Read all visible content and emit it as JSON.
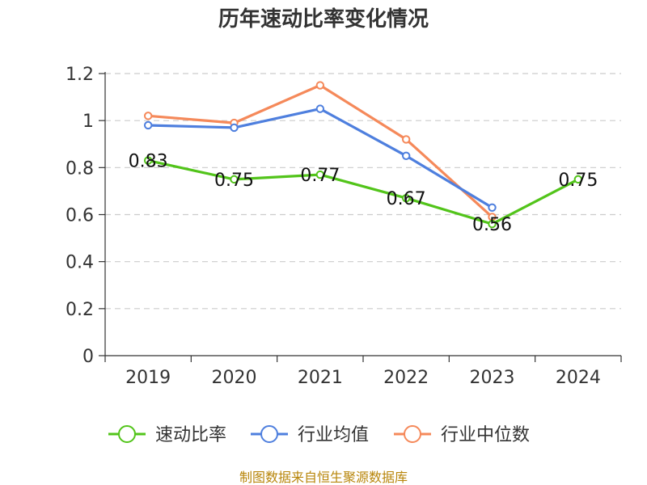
{
  "chart_data": {
    "type": "line",
    "title": "历年速动比率变化情况",
    "xlabel": "",
    "ylabel": "",
    "categories": [
      "2019",
      "2020",
      "2021",
      "2022",
      "2023",
      "2024"
    ],
    "ylim": [
      0,
      1.2
    ],
    "yticks": [
      "0",
      "0.2",
      "0.4",
      "0.6",
      "0.8",
      "1",
      "1.2"
    ],
    "yticks_values": [
      0,
      0.2,
      0.4,
      0.6,
      0.8,
      1.0,
      1.2
    ],
    "grid": true,
    "legend_position": "bottom",
    "series": [
      {
        "name": "速动比率",
        "color": "#52c41a",
        "values": [
          0.83,
          0.75,
          0.77,
          0.67,
          0.56,
          0.75
        ],
        "labels": [
          "0.83",
          "0.75",
          "0.77",
          "0.67",
          "0.56",
          "0.75"
        ]
      },
      {
        "name": "行业均值",
        "color": "#4e7fde",
        "values": [
          0.98,
          0.97,
          1.05,
          0.85,
          0.63,
          null
        ]
      },
      {
        "name": "行业中位数",
        "color": "#f5895a",
        "values": [
          1.02,
          0.99,
          1.15,
          0.92,
          0.59,
          null
        ]
      }
    ]
  },
  "footer": {
    "source": "制图数据来自恒生聚源数据库"
  }
}
